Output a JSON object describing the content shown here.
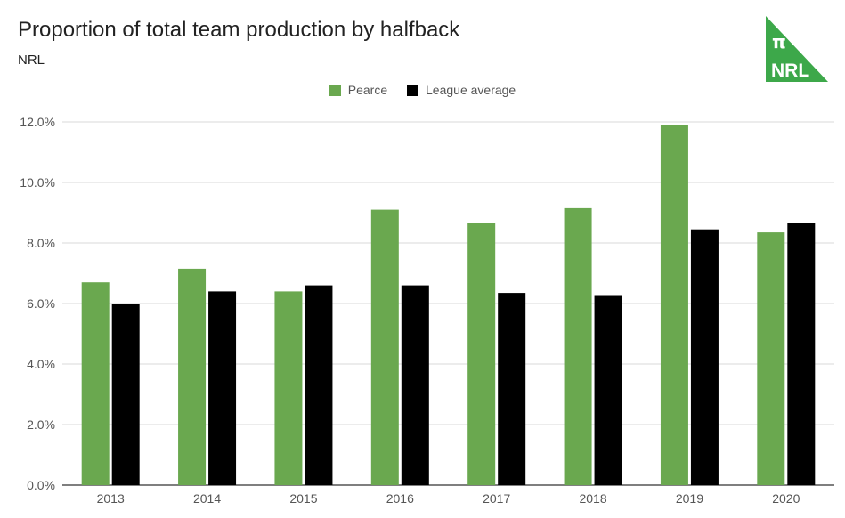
{
  "header": {
    "title": "Proportion of total team production by halfback",
    "subtitle": "NRL"
  },
  "logo": {
    "symbol": "π",
    "text": "NRL",
    "color": "#3da84a"
  },
  "chart_data": {
    "type": "bar",
    "title": "Proportion of total team production by halfback",
    "subtitle": "NRL",
    "xlabel": "",
    "ylabel": "",
    "categories": [
      "2013",
      "2014",
      "2015",
      "2016",
      "2017",
      "2018",
      "2019",
      "2020"
    ],
    "series": [
      {
        "name": "Pearce",
        "color": "#6aa84f",
        "values": [
          6.7,
          7.15,
          6.4,
          9.1,
          8.65,
          9.15,
          11.9,
          8.35
        ]
      },
      {
        "name": "League average",
        "color": "#000000",
        "values": [
          6.0,
          6.4,
          6.6,
          6.6,
          6.35,
          6.25,
          8.45,
          8.65
        ]
      }
    ],
    "ylim": [
      0,
      12
    ],
    "yticks": [
      0,
      2,
      4,
      6,
      8,
      10,
      12
    ],
    "ytick_labels": [
      "0.0%",
      "2.0%",
      "4.0%",
      "6.0%",
      "8.0%",
      "10.0%",
      "12.0%"
    ],
    "grid": true,
    "legend_position": "top-center"
  }
}
